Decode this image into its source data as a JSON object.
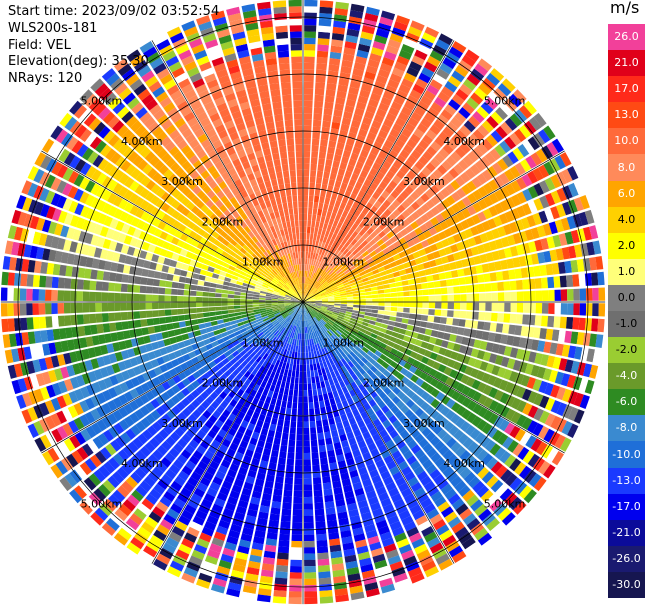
{
  "header": {
    "start_time": "Start time: 2023/09/02 03:52:54",
    "instrument": "WLS200s-181",
    "field": "Field: VEL",
    "elevation": "Elevation(deg): 35.30",
    "nrays": "NRays: 120"
  },
  "colorbar": {
    "unit": "m/s",
    "ticks": [
      "26.0",
      "21.0",
      "17.0",
      "13.0",
      "10.0",
      "8.0",
      "6.0",
      "4.0",
      "2.0",
      "1.0",
      "0.0",
      "-1.0",
      "-2.0",
      "-4.0",
      "-6.0",
      "-8.0",
      "-10.0",
      "-13.0",
      "-17.0",
      "-21.0",
      "-26.0",
      "-30.0"
    ],
    "colors": [
      "#f2409a",
      "#e0001a",
      "#ff2a1a",
      "#ff4a14",
      "#ff6a3a",
      "#ff8a5a",
      "#ffa500",
      "#ffd000",
      "#ffff00",
      "#ffff7a",
      "#7f7f7f",
      "#6f6f6f",
      "#9acd32",
      "#6a9a2a",
      "#2e8b22",
      "#3a8ad0",
      "#1f6fd8",
      "#1a3aff",
      "#0000ee",
      "#0b0b9a",
      "#1a1a70",
      "#161650"
    ]
  },
  "chart_data": {
    "type": "heatmap",
    "subtype": "polar-ppi",
    "field": "VEL",
    "units": "m/s",
    "n_rays": 120,
    "elevation_deg": 35.3,
    "range_ring_labels": [
      "1.00km",
      "2.00km",
      "3.00km",
      "4.00km",
      "5.00km"
    ],
    "range_rings_km": [
      1,
      2,
      3,
      4,
      5
    ],
    "max_range_km": 5.3,
    "clean_range_km": 4.5,
    "color_scale": {
      "boundaries": [
        -30,
        -26,
        -21,
        -17,
        -13,
        -10,
        -8,
        -6,
        -4,
        -2,
        -1,
        0,
        1,
        2,
        4,
        6,
        8,
        10,
        13,
        17,
        21,
        26,
        30
      ],
      "colors": [
        "#161650",
        "#1a1a70",
        "#0b0b9a",
        "#0000ee",
        "#1a3aff",
        "#1f6fd8",
        "#3a8ad0",
        "#2e8b22",
        "#6a9a2a",
        "#9acd32",
        "#6f6f6f",
        "#7f7f7f",
        "#ffff7a",
        "#ffff00",
        "#ffd000",
        "#ffa500",
        "#ff8a5a",
        "#ff6a3a",
        "#ff4a14",
        "#ff2a1a",
        "#e0001a",
        "#f2409a"
      ]
    },
    "wind_model": {
      "description": "radial velocity pattern of uniform wind: positive toward north, negative toward south",
      "peak_positive_azimuth_deg": 10,
      "peak_positive_mps": 12,
      "peak_negative_azimuth_deg": 190,
      "peak_negative_mps": -14
    },
    "noise_beyond_km": 4.5
  }
}
